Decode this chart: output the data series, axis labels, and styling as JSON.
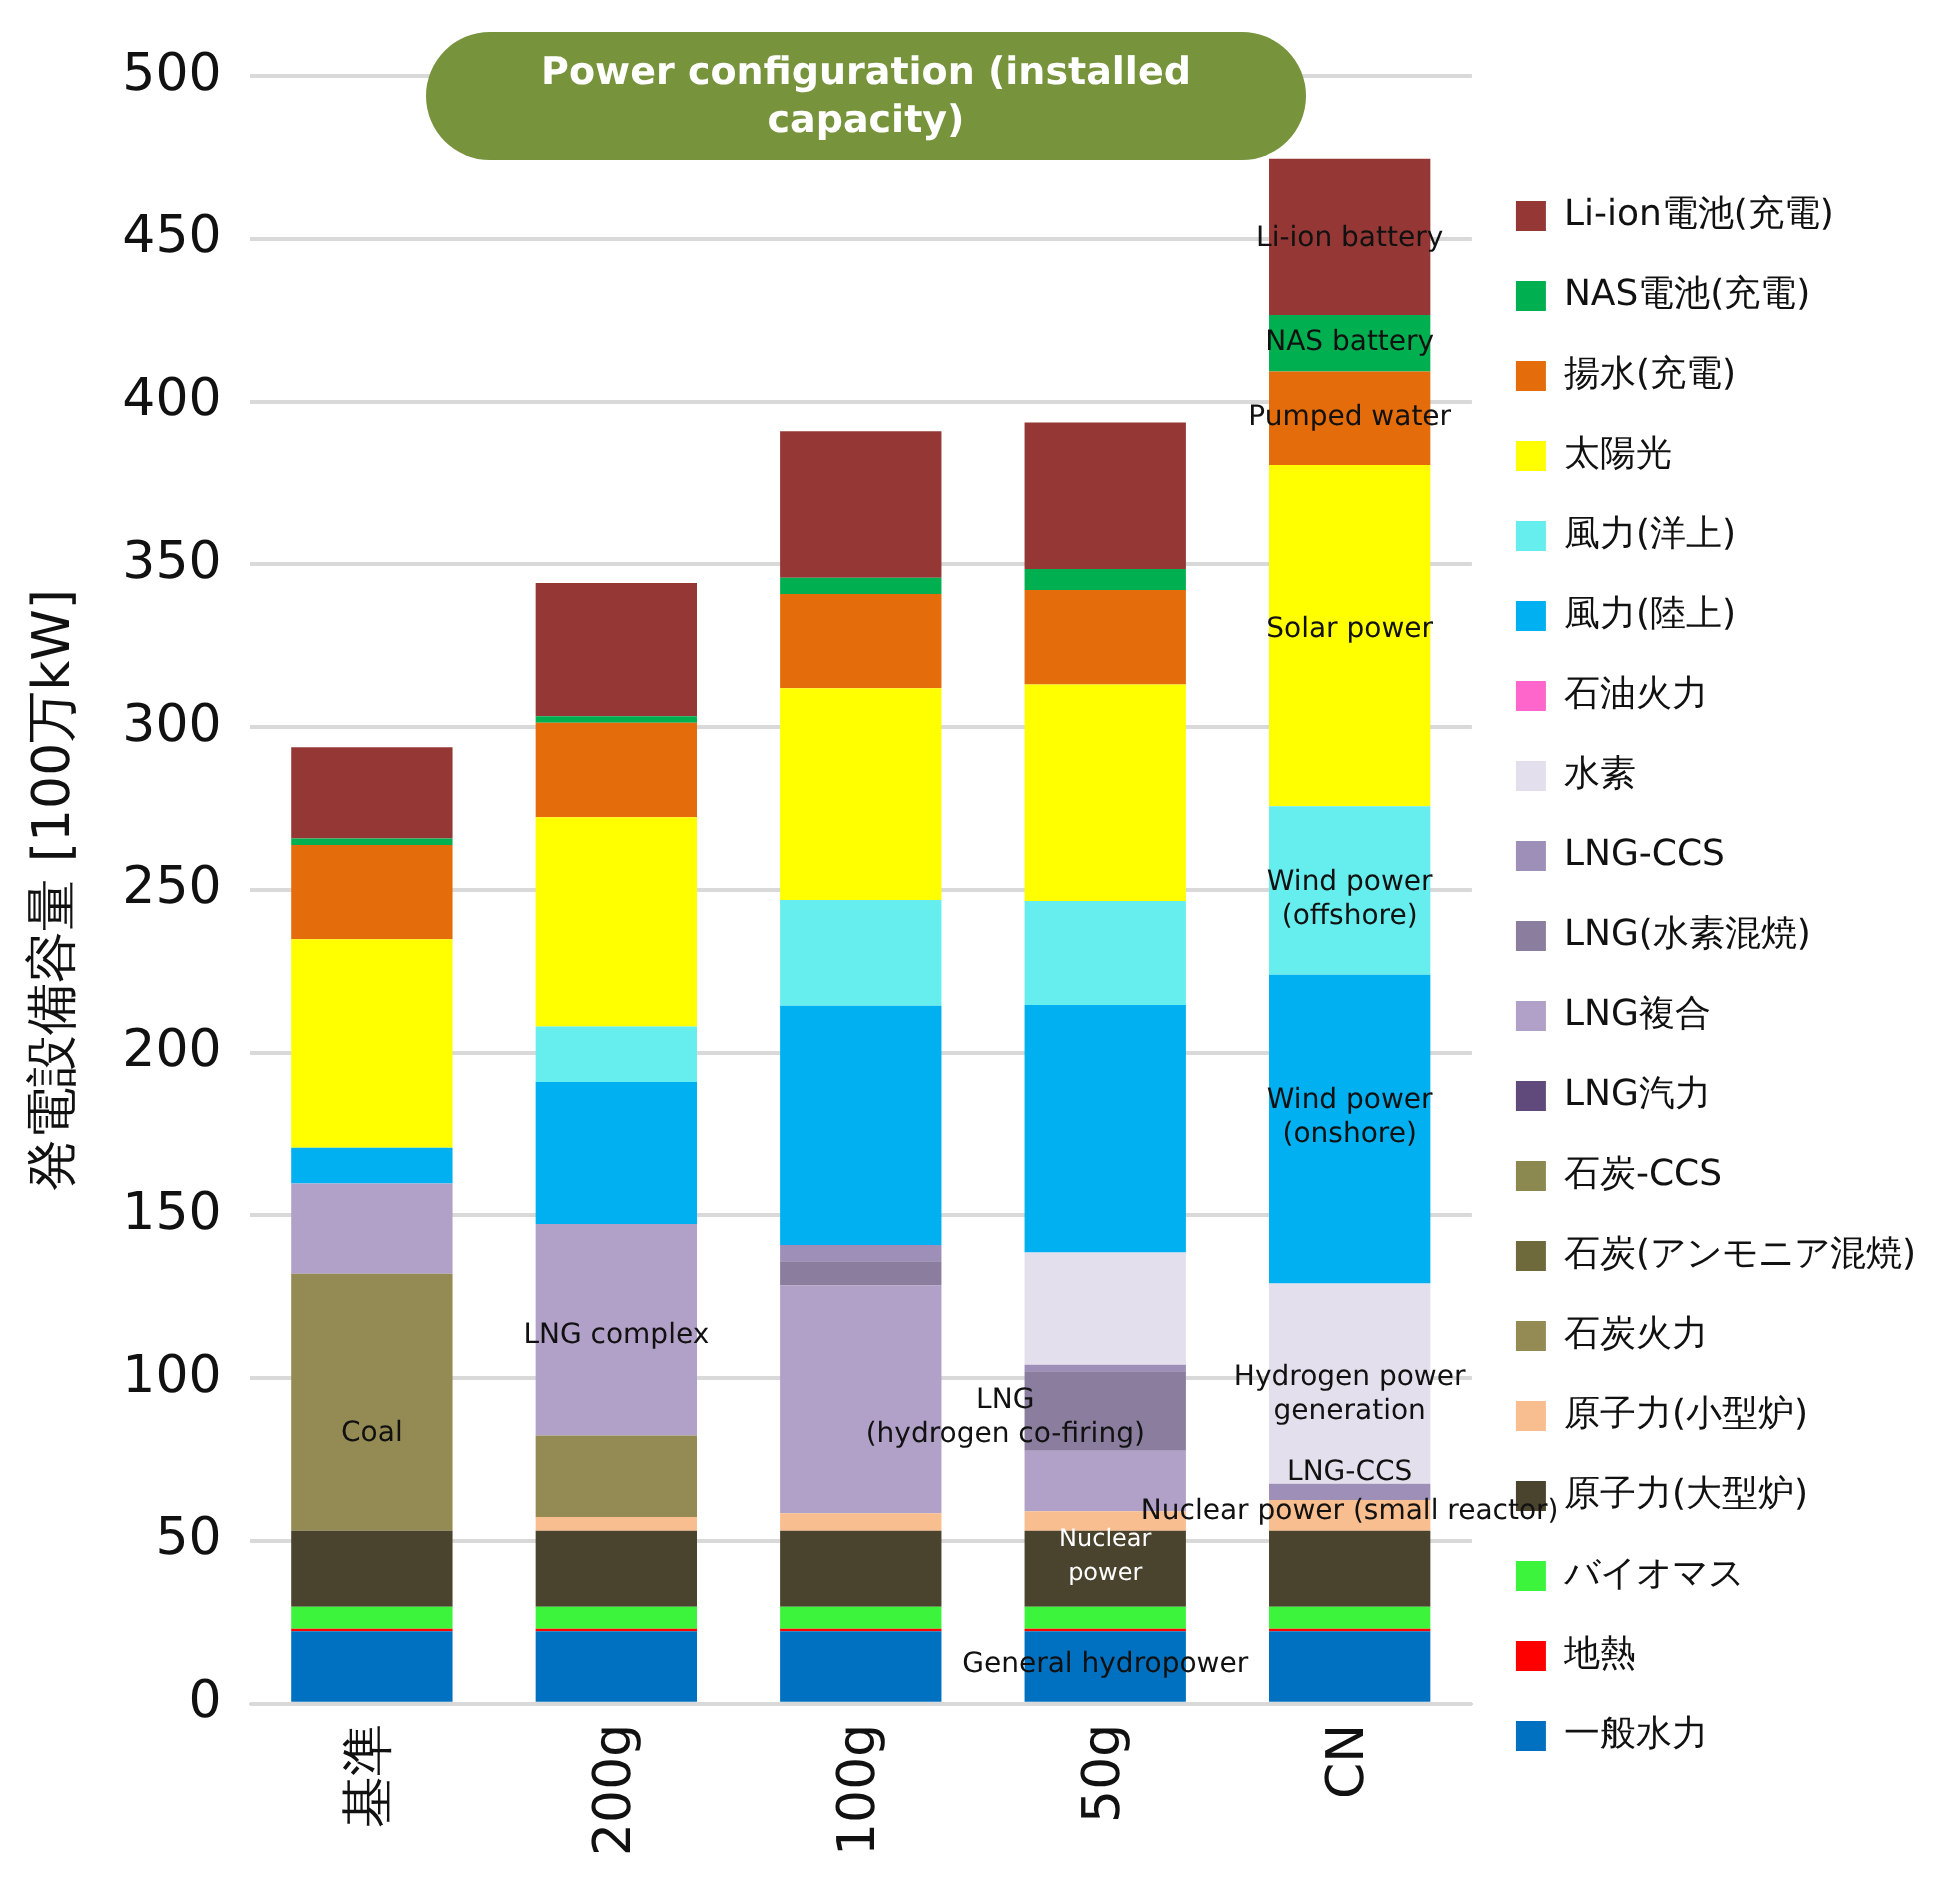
{
  "chart_data": {
    "type": "bar",
    "stacked": true,
    "title": "Power configuration (installed capacity)",
    "ylabel": "発電設備容量 [100万kW]",
    "categories": [
      "基準",
      "200g",
      "100g",
      "50g",
      "CN"
    ],
    "ylim": [
      0,
      500
    ],
    "yticks": [
      0,
      50,
      100,
      150,
      200,
      250,
      300,
      350,
      400,
      450,
      500
    ],
    "grid": "y",
    "legend": "right",
    "series": [
      {
        "name": "一般水力",
        "color": "#0070c0",
        "values": [
          22.3,
          22.3,
          22.3,
          22.3,
          22.3
        ]
      },
      {
        "name": "地熱",
        "color": "#ff0000",
        "values": [
          0.7,
          0.7,
          0.7,
          0.7,
          0.7
        ]
      },
      {
        "name": "バイオマス",
        "color": "#3cf43c",
        "values": [
          6.8,
          6.8,
          6.8,
          6.8,
          6.8
        ]
      },
      {
        "name": "原子力(大型炉)",
        "color": "#4a432d",
        "values": [
          23.3,
          23.3,
          23.3,
          23.3,
          23.3
        ]
      },
      {
        "name": "原子力(小型炉)",
        "color": "#f9be8f",
        "values": [
          0,
          4.3,
          5.4,
          6,
          9.5
        ]
      },
      {
        "name": "石炭火力",
        "color": "#948a54",
        "values": [
          79,
          25,
          0,
          0,
          0
        ]
      },
      {
        "name": "石炭(アンモニア混焼)",
        "color": "#6e6a3c",
        "values": [
          0,
          0,
          0,
          0,
          0
        ]
      },
      {
        "name": "石炭-CCS",
        "color": "#8b8850",
        "values": [
          0,
          0,
          0,
          0,
          0
        ]
      },
      {
        "name": "LNG汽力",
        "color": "#604a7b",
        "values": [
          0,
          0,
          0,
          0,
          0
        ]
      },
      {
        "name": "LNG複合",
        "color": "#b1a0c7",
        "values": [
          27.7,
          65,
          70,
          18.6,
          0
        ]
      },
      {
        "name": "LNG(水素混焼)",
        "color": "#8a7d9e",
        "values": [
          0,
          0,
          7.4,
          24.4,
          0
        ]
      },
      {
        "name": "LNG-CCS",
        "color": "#9d8fb8",
        "values": [
          0,
          0,
          5,
          2,
          5
        ]
      },
      {
        "name": "水素",
        "color": "#e4dfec",
        "values": [
          0,
          0,
          0,
          34.5,
          61.5
        ]
      },
      {
        "name": "石油火力",
        "color": "#ff66cc",
        "values": [
          0,
          0,
          0,
          0,
          0
        ]
      },
      {
        "name": "風力(陸上)",
        "color": "#00b0f0",
        "values": [
          11,
          43.6,
          73.5,
          76,
          94.8
        ]
      },
      {
        "name": "風力(洋上)",
        "color": "#66eeee",
        "values": [
          0,
          17,
          32.5,
          32,
          51.8
        ]
      },
      {
        "name": "太陽光",
        "color": "#ffff00",
        "values": [
          64,
          64.3,
          65,
          66.5,
          104.8
        ]
      },
      {
        "name": "揚水(充電)",
        "color": "#e46c0a",
        "values": [
          29,
          29,
          29,
          29,
          28.7
        ]
      },
      {
        "name": "NAS電池(充電)",
        "color": "#00b050",
        "values": [
          2,
          2,
          5,
          6.5,
          17.4
        ]
      },
      {
        "name": "Li-ion電池(充電)",
        "color": "#953735",
        "values": [
          28,
          41,
          45,
          45,
          48
        ]
      }
    ],
    "annotations": [
      "Coal",
      "LNG complex",
      "LNG\n(hydrogen co-firing)",
      "Nuclear\npower",
      "General hydropower",
      "Hydrogen power\ngeneration",
      "LNG-CCS",
      "Nuclear power (small reactor)",
      "Wind power\n(onshore)",
      "Wind power\n(offshore)",
      "Solar power",
      "Pumped water",
      "NAS battery",
      "Li-ion battery"
    ]
  }
}
